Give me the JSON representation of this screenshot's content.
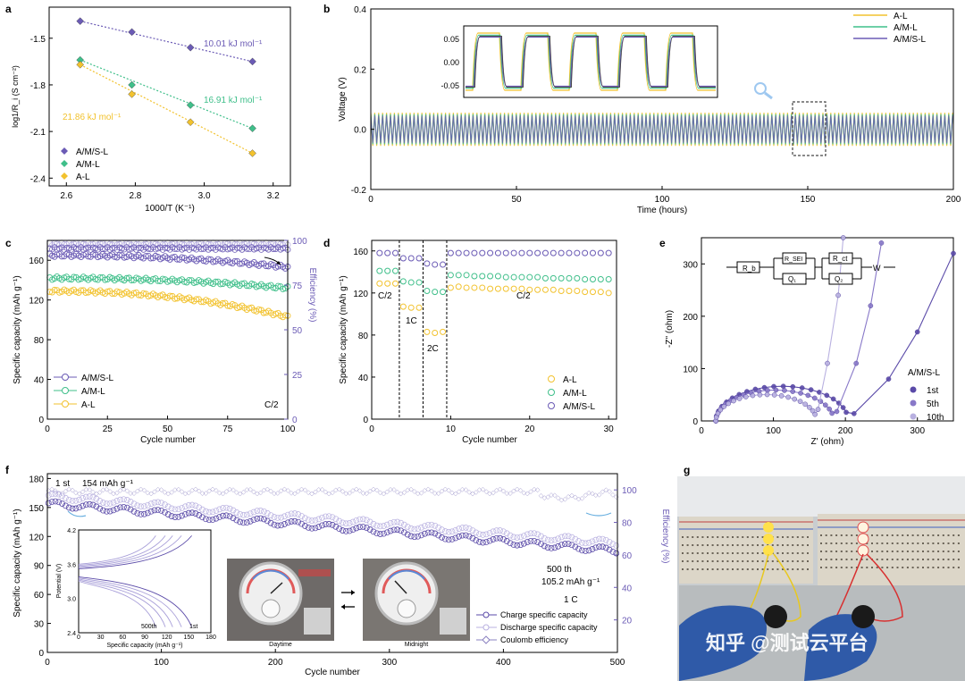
{
  "panel_letters": {
    "a": "a",
    "b": "b",
    "c": "c",
    "d": "d",
    "e": "e",
    "f": "f",
    "g": "g"
  },
  "colors": {
    "AL": "#f2c22e",
    "AML": "#3fbf8a",
    "AMSL": "#6b5bb5",
    "AMSL_light": "#b8b0e0",
    "dash": "#555555"
  },
  "chart_data": [
    {
      "id": "a",
      "type": "scatter",
      "xlabel": "1000/T (K⁻¹)",
      "ylabel": "log1/R_i (S cm⁻²)",
      "xlim": [
        2.55,
        3.25
      ],
      "ylim": [
        -2.45,
        -1.3
      ],
      "xticks": [
        "2.6",
        "2.8",
        "3.0",
        "3.2"
      ],
      "yticks": [
        "-1.5",
        "-1.8",
        "-2.1",
        "-2.4"
      ],
      "legend": [
        "A/M/S-L",
        "A/M-L",
        "A-L"
      ],
      "series": [
        {
          "name": "A/M/S-L",
          "x": [
            2.64,
            2.79,
            2.96,
            3.14
          ],
          "y": [
            -1.39,
            -1.46,
            -1.56,
            -1.65
          ],
          "label": "10.01 kJ mol⁻¹"
        },
        {
          "name": "A/M-L",
          "x": [
            2.64,
            2.79,
            2.96,
            3.14
          ],
          "y": [
            -1.64,
            -1.8,
            -1.93,
            -2.08
          ],
          "label": "16.91 kJ mol⁻¹"
        },
        {
          "name": "A-L",
          "x": [
            2.64,
            2.79,
            2.96,
            3.14
          ],
          "y": [
            -1.67,
            -1.86,
            -2.04,
            -2.24
          ],
          "label": "21.86 kJ mol⁻¹"
        }
      ]
    },
    {
      "id": "b",
      "type": "line",
      "xlabel": "Time (hours)",
      "ylabel": "Voltage (V)",
      "xlim": [
        0,
        200
      ],
      "ylim": [
        -0.2,
        0.4
      ],
      "xticks": [
        "0",
        "50",
        "100",
        "150",
        "200"
      ],
      "yticks": [
        "0.4",
        "0.2",
        "0.0",
        "-0.2"
      ],
      "legend": [
        "A-L",
        "A/M-L",
        "A/M/S-L"
      ],
      "band": {
        "A-L": 0.055,
        "A/M-L": 0.05,
        "A/M/S-L": 0.045
      },
      "inset": {
        "yticks": [
          "0.05",
          "0.00",
          "-0.05"
        ],
        "amplitude_V": 0.05
      }
    },
    {
      "id": "c",
      "type": "scatter",
      "xlabel": "Cycle number",
      "ylabel": "Specific capacity (mAh g⁻¹)",
      "y2label": "Efficiency (%)",
      "xlim": [
        0,
        100
      ],
      "ylim": [
        0,
        180
      ],
      "y2lim": [
        0,
        100
      ],
      "xticks": [
        "0",
        "25",
        "50",
        "75",
        "100"
      ],
      "yticks": [
        "0",
        "40",
        "80",
        "120",
        "160"
      ],
      "y2ticks": [
        "0",
        "25",
        "50",
        "75",
        "100"
      ],
      "legend": [
        "A/M/S-L",
        "A/M-L",
        "A-L"
      ],
      "rate_label": "C/2",
      "series": [
        {
          "name": "A/M/S-L",
          "start": 165,
          "end": 153
        },
        {
          "name": "A/M-L",
          "start": 142,
          "end": 132
        },
        {
          "name": "A-L",
          "start": 129,
          "end": 103
        }
      ],
      "efficiency": [
        {
          "name": "A/M/S-L",
          "value": 98
        },
        {
          "name": "A/M-L",
          "value": 95.5
        }
      ]
    },
    {
      "id": "d",
      "type": "scatter",
      "xlabel": "Cycle number",
      "ylabel": "Specific capacity (mAh g⁻¹)",
      "xlim": [
        0,
        31
      ],
      "ylim": [
        0,
        170
      ],
      "xticks": [
        "0",
        "10",
        "20",
        "30"
      ],
      "yticks": [
        "0",
        "40",
        "80",
        "120",
        "160"
      ],
      "legend": [
        "A-L",
        "A/M-L",
        "A/M/S-L"
      ],
      "rate_labels": [
        "C/2",
        "1C",
        "2C",
        "C/2"
      ],
      "series": [
        {
          "name": "A-L",
          "values": [
            129,
            129,
            129,
            107,
            106,
            106,
            83,
            82,
            83,
            125,
            126,
            125,
            125,
            125,
            124,
            124,
            124,
            124,
            124,
            123,
            123,
            123,
            123,
            122,
            122,
            122,
            121,
            121,
            121,
            120
          ]
        },
        {
          "name": "A/M-L",
          "values": [
            141,
            141,
            141,
            131,
            130,
            130,
            122,
            121,
            121,
            137,
            137,
            137,
            136,
            136,
            136,
            136,
            135,
            135,
            135,
            135,
            135,
            134,
            134,
            134,
            134,
            134,
            133,
            133,
            133,
            133
          ]
        },
        {
          "name": "A/M/S-L",
          "values": [
            158,
            158,
            158,
            153,
            153,
            153,
            148,
            147,
            147,
            158,
            158,
            158,
            158,
            158,
            158,
            158,
            158,
            158,
            158,
            158,
            158,
            158,
            158,
            158,
            158,
            158,
            158,
            158,
            158,
            158
          ]
        }
      ]
    },
    {
      "id": "e",
      "type": "scatter",
      "xlabel": "Z' (ohm)",
      "ylabel": "-Z'' (ohm)",
      "xlim": [
        0,
        350
      ],
      "ylim": [
        0,
        350
      ],
      "xticks": [
        "0",
        "100",
        "200",
        "300"
      ],
      "yticks": [
        "0",
        "100",
        "200",
        "300"
      ],
      "legend_title": "A/M/S-L",
      "legend": [
        "1st",
        "5th",
        "10th"
      ],
      "circuit": [
        "R_b",
        "R_SEI",
        "R_ct",
        "Q₁",
        "Q₂",
        "W"
      ]
    },
    {
      "id": "f",
      "type": "scatter",
      "xlabel": "Cycle number",
      "ylabel": "Specific capacity (mAh g⁻¹)",
      "y2label": "Efficiency (%)",
      "xlim": [
        0,
        500
      ],
      "ylim": [
        0,
        185
      ],
      "y2lim": [
        0,
        110
      ],
      "xticks": [
        "0",
        "100",
        "200",
        "300",
        "400",
        "500"
      ],
      "yticks": [
        "0",
        "30",
        "60",
        "90",
        "120",
        "150",
        "180"
      ],
      "y2ticks": [
        "20",
        "40",
        "60",
        "80",
        "100"
      ],
      "legend": [
        "Charge specific capacity",
        "Discharge specific capacity",
        "Coulomb efficiency"
      ],
      "start": {
        "cycle": "1 st",
        "capacity": "154 mAh g⁻¹",
        "value": 154
      },
      "end": {
        "cycle": "500 th",
        "capacity": "105.2 mAh g⁻¹",
        "value": 105.2,
        "rate": "1 C"
      },
      "inset": {
        "xlabel": "Specific capacity (mAh g⁻¹)",
        "ylabel": "Potential (V)",
        "xticks": [
          "0",
          "30",
          "60",
          "90",
          "120",
          "150",
          "180"
        ],
        "yticks": [
          "2.4",
          "3.0",
          "3.6",
          "4.2"
        ],
        "labels": [
          "500th",
          "1st"
        ]
      }
    }
  ],
  "panel_f_photos": {
    "left": "Daytime",
    "right": "Midnight"
  },
  "watermark": "知乎 @测试云平台"
}
